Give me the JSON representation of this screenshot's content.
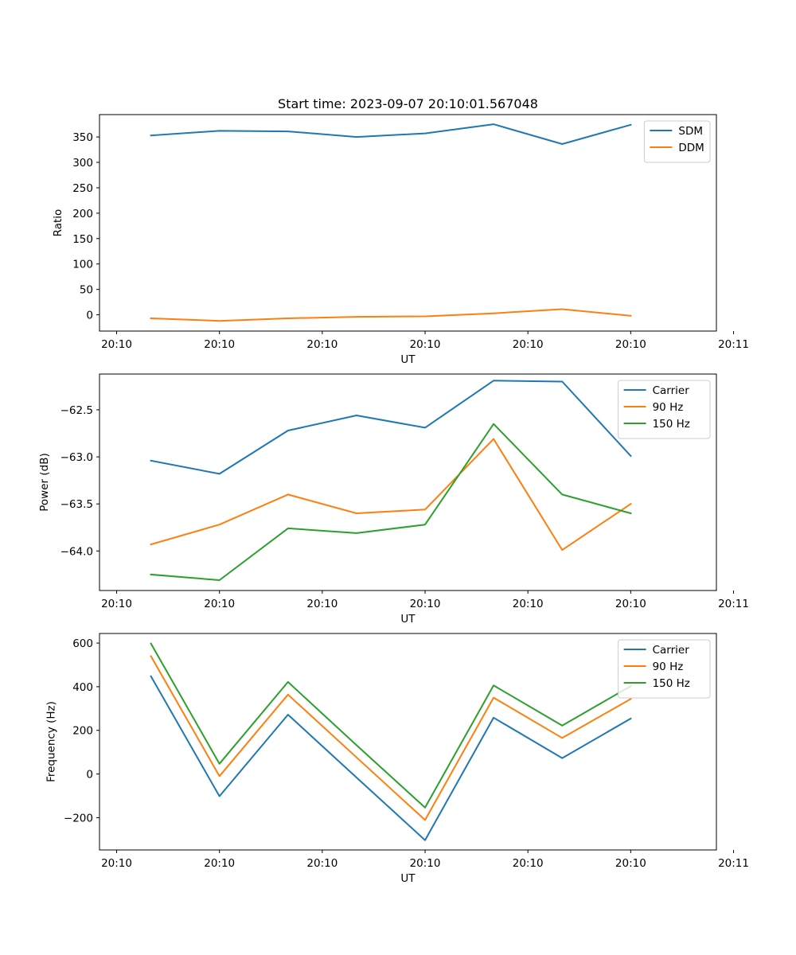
{
  "figure": {
    "title": "Start time: 2023-09-07 20:10:01.567048"
  },
  "colors": {
    "blue": "#1f77b4",
    "orange": "#ff7f0e",
    "green": "#2ca02c"
  },
  "chart_data": [
    {
      "type": "line",
      "title": "Start time: 2023-09-07 20:10:01.567048",
      "xlabel": "UT",
      "ylabel": "Ratio",
      "x": [
        1,
        2,
        3,
        4,
        5,
        6,
        7,
        8
      ],
      "xlim": [
        0.25,
        9.25
      ],
      "xticks": [
        0.5,
        2,
        3.5,
        5,
        6.5,
        8,
        9.5
      ],
      "xtick_labels": [
        "20:10",
        "20:10",
        "20:10",
        "20:10",
        "20:10",
        "20:10",
        "20:11"
      ],
      "ylim": [
        -32,
        394
      ],
      "yticks": [
        0,
        50,
        100,
        150,
        200,
        250,
        300,
        350
      ],
      "ytick_labels": [
        "0",
        "50",
        "100",
        "150",
        "200",
        "250",
        "300",
        "350"
      ],
      "legend_position": "top-right",
      "series": [
        {
          "name": "SDM",
          "color": "#1f77b4",
          "values": [
            353,
            362,
            361,
            350,
            357,
            375,
            336,
            374
          ]
        },
        {
          "name": "DDM",
          "color": "#ff7f0e",
          "values": [
            -7,
            -12,
            -7,
            -4,
            -3,
            3,
            11,
            -2
          ]
        }
      ]
    },
    {
      "type": "line",
      "title": "",
      "xlabel": "UT",
      "ylabel": "Power (dB)",
      "x": [
        1,
        2,
        3,
        4,
        5,
        6,
        7,
        8
      ],
      "xlim": [
        0.25,
        9.25
      ],
      "xticks": [
        0.5,
        2,
        3.5,
        5,
        6.5,
        8,
        9.5
      ],
      "xtick_labels": [
        "20:10",
        "20:10",
        "20:10",
        "20:10",
        "20:10",
        "20:10",
        "20:11"
      ],
      "ylim": [
        -64.42,
        -62.12
      ],
      "yticks": [
        -64.0,
        -63.5,
        -63.0,
        -62.5
      ],
      "ytick_labels": [
        "−64.0",
        "−63.5",
        "−63.0",
        "−62.5"
      ],
      "legend_position": "top-right",
      "series": [
        {
          "name": "Carrier",
          "color": "#1f77b4",
          "values": [
            -63.04,
            -63.18,
            -62.72,
            -62.56,
            -62.69,
            -62.19,
            -62.2,
            -62.99
          ]
        },
        {
          "name": "90 Hz",
          "color": "#ff7f0e",
          "values": [
            -63.93,
            -63.72,
            -63.4,
            -63.6,
            -63.56,
            -62.81,
            -63.99,
            -63.5
          ]
        },
        {
          "name": "150 Hz",
          "color": "#2ca02c",
          "values": [
            -64.25,
            -64.31,
            -63.76,
            -63.81,
            -63.72,
            -62.65,
            -63.4,
            -63.6
          ]
        }
      ]
    },
    {
      "type": "line",
      "title": "",
      "xlabel": "UT",
      "ylabel": "Frequency (Hz)",
      "x": [
        1,
        2,
        3,
        4,
        5,
        6,
        7,
        8
      ],
      "xlim": [
        0.25,
        9.25
      ],
      "xticks": [
        0.5,
        2,
        3.5,
        5,
        6.5,
        8,
        9.5
      ],
      "xtick_labels": [
        "20:10",
        "20:10",
        "20:10",
        "20:10",
        "20:10",
        "20:10",
        "20:11"
      ],
      "ylim": [
        -348,
        644
      ],
      "yticks": [
        -200,
        0,
        200,
        400,
        600
      ],
      "ytick_labels": [
        "−200",
        "0",
        "200",
        "400",
        "600"
      ],
      "legend_position": "top-right",
      "series": [
        {
          "name": "Carrier",
          "color": "#1f77b4",
          "values": [
            448,
            -102,
            272,
            -16,
            -303,
            258,
            73,
            254
          ]
        },
        {
          "name": "90 Hz",
          "color": "#ff7f0e",
          "values": [
            540,
            -10,
            364,
            76,
            -211,
            350,
            165,
            344
          ]
        },
        {
          "name": "150 Hz",
          "color": "#2ca02c",
          "values": [
            598,
            47,
            422,
            132,
            -154,
            406,
            222,
            403
          ]
        }
      ]
    }
  ]
}
